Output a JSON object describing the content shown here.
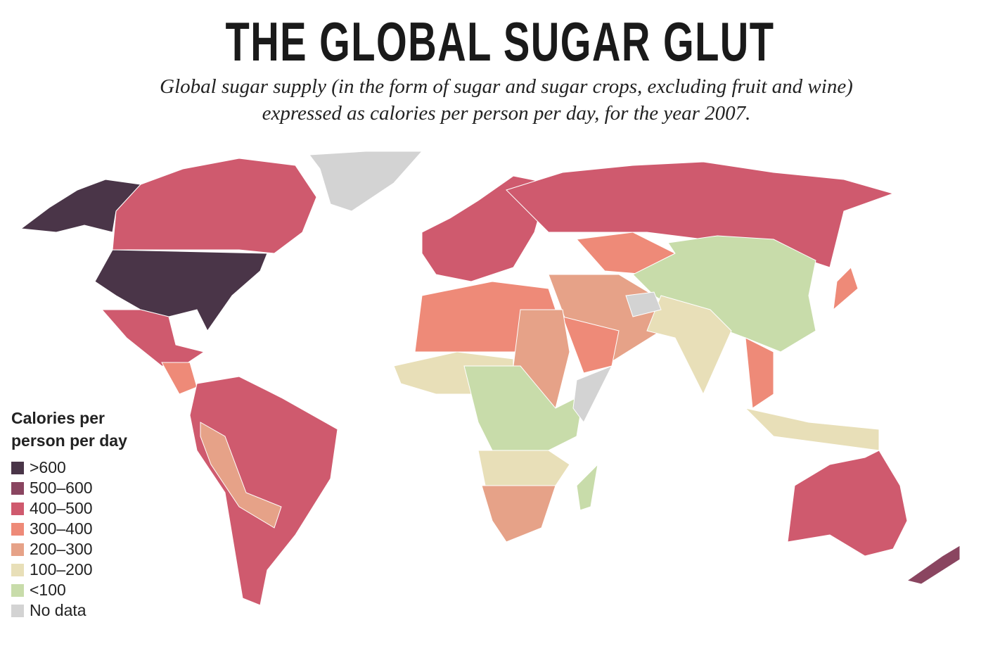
{
  "title": "THE GLOBAL SUGAR GLUT",
  "subtitle": "Global sugar supply (in the form of sugar and sugar crops, excluding fruit and wine) expressed as calories per person per day, for the year 2007.",
  "legend": {
    "title": "Calories per person per day",
    "items": [
      {
        "label": ">600",
        "color": "#4a3548"
      },
      {
        "label": "500–600",
        "color": "#8a4560"
      },
      {
        "label": "400–500",
        "color": "#cf5a6e"
      },
      {
        "label": "300–400",
        "color": "#ee8a78"
      },
      {
        "label": "200–300",
        "color": "#e6a288"
      },
      {
        "label": "100–200",
        "color": "#e8dfb8"
      },
      {
        "label": "<100",
        "color": "#c8dcaa"
      },
      {
        "label": "No data",
        "color": "#d3d3d3"
      }
    ]
  }
}
